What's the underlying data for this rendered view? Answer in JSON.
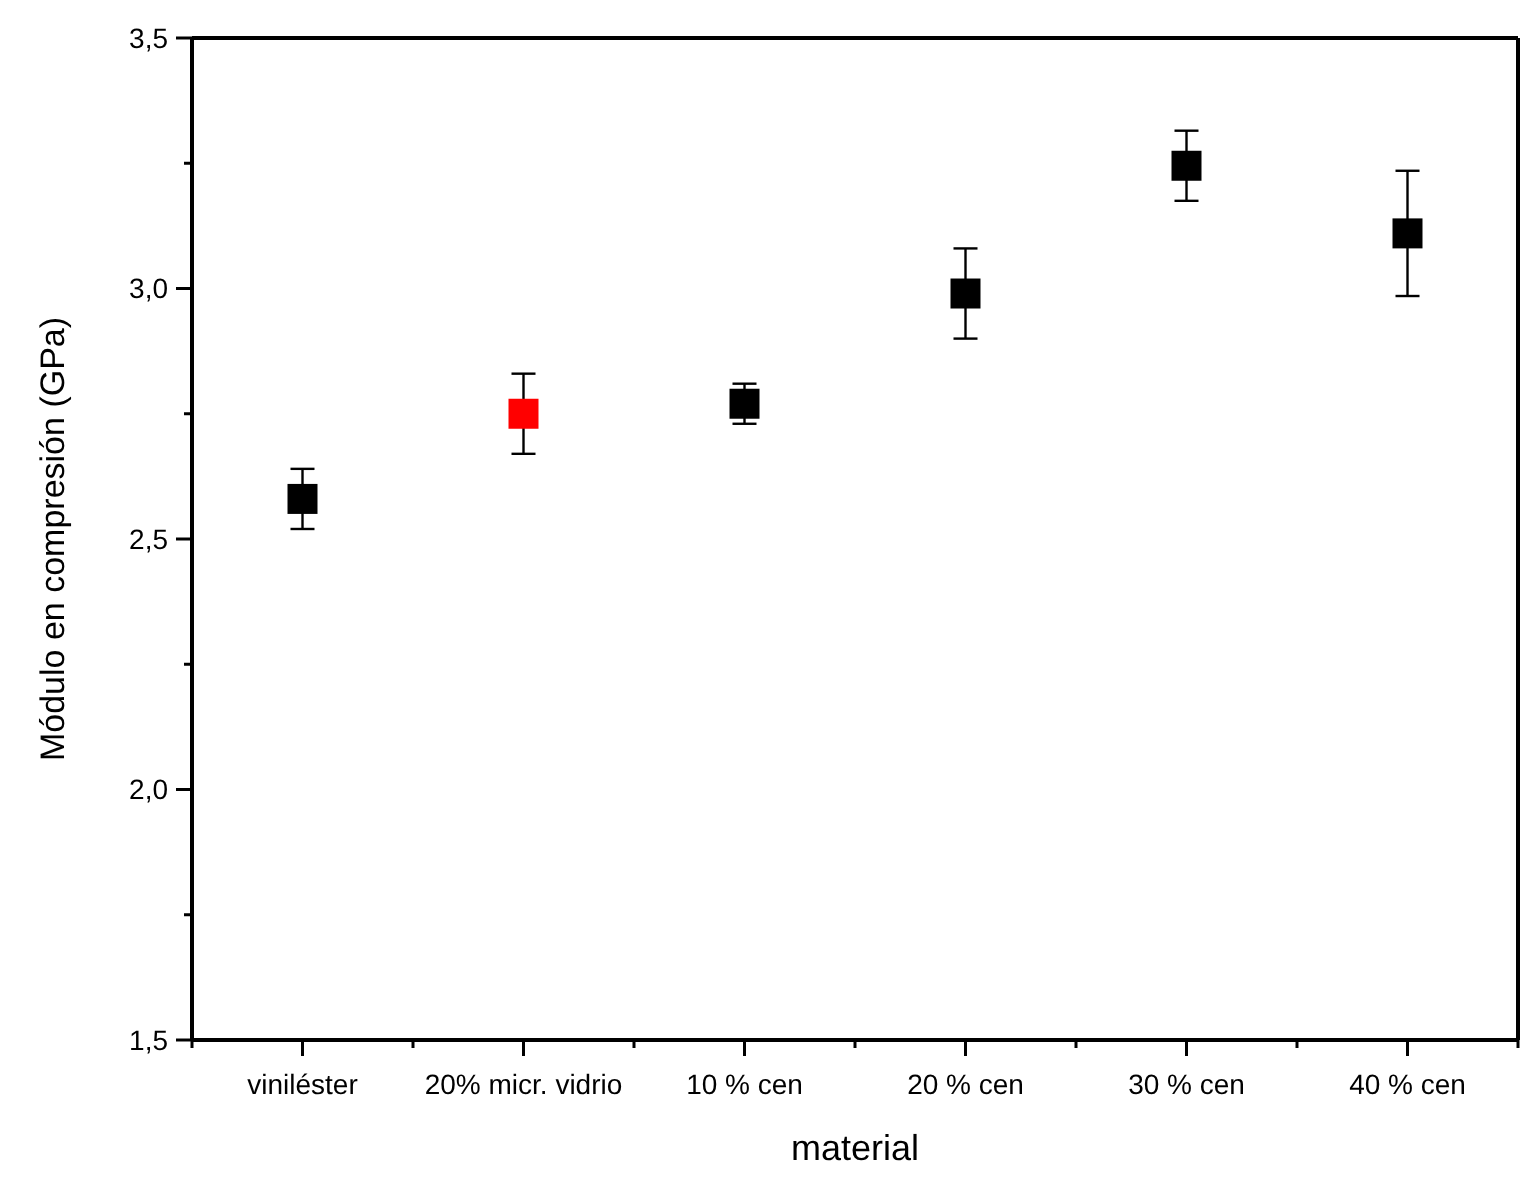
{
  "chart_data": {
    "type": "scatter",
    "xlabel": "material",
    "ylabel": "Módulo en compresión (GPa)",
    "categories": [
      "viniléster",
      "20% micr. vidrio",
      "10 % cen",
      "20 % cen",
      "30 % cen",
      "40 % cen"
    ],
    "series": [
      {
        "colors": [
          "#000000",
          "#ff0000",
          "#000000",
          "#000000",
          "#000000",
          "#000000"
        ],
        "values": [
          2.58,
          2.75,
          2.77,
          2.99,
          3.245,
          3.11
        ],
        "errors": [
          0.06,
          0.08,
          0.04,
          0.09,
          0.07,
          0.125
        ]
      }
    ],
    "ylim": [
      1.5,
      3.5
    ],
    "yticks": [
      {
        "value": 1.5,
        "label": "1,5"
      },
      {
        "value": 1.75,
        "label": null
      },
      {
        "value": 2.0,
        "label": "2,0"
      },
      {
        "value": 2.25,
        "label": null
      },
      {
        "value": 2.5,
        "label": "2,5"
      },
      {
        "value": 2.75,
        "label": null
      },
      {
        "value": 3.0,
        "label": "3,0"
      },
      {
        "value": 3.25,
        "label": null
      },
      {
        "value": 3.5,
        "label": "3,5"
      }
    ],
    "marker": "square",
    "grid": false
  }
}
